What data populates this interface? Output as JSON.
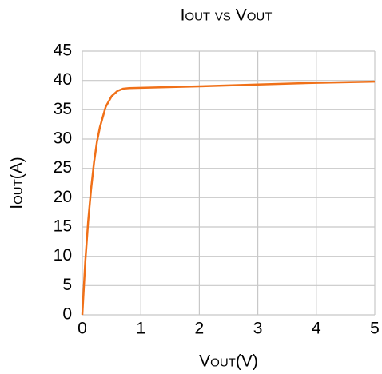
{
  "chart_data": {
    "type": "line",
    "title": "Iout vs Vout",
    "xlabel": "Vout(V)",
    "ylabel": "Iout(A)",
    "x": [
      0,
      0.05,
      0.1,
      0.15,
      0.2,
      0.25,
      0.3,
      0.4,
      0.5,
      0.6,
      0.7,
      0.8,
      1,
      2,
      3,
      4,
      5
    ],
    "series": [
      {
        "name": "Iout",
        "color": "#f07018",
        "values": [
          0,
          9,
          16,
          21.5,
          26,
          29.5,
          32,
          35.5,
          37.3,
          38.2,
          38.6,
          38.7,
          38.75,
          39,
          39.3,
          39.6,
          39.8
        ]
      }
    ],
    "xlim": [
      0,
      5
    ],
    "xticks": [
      0,
      1,
      2,
      3,
      4,
      5
    ],
    "ylim": [
      0,
      45
    ],
    "yticks": [
      0,
      5,
      10,
      15,
      20,
      25,
      30,
      35,
      40,
      45
    ],
    "grid": true
  }
}
